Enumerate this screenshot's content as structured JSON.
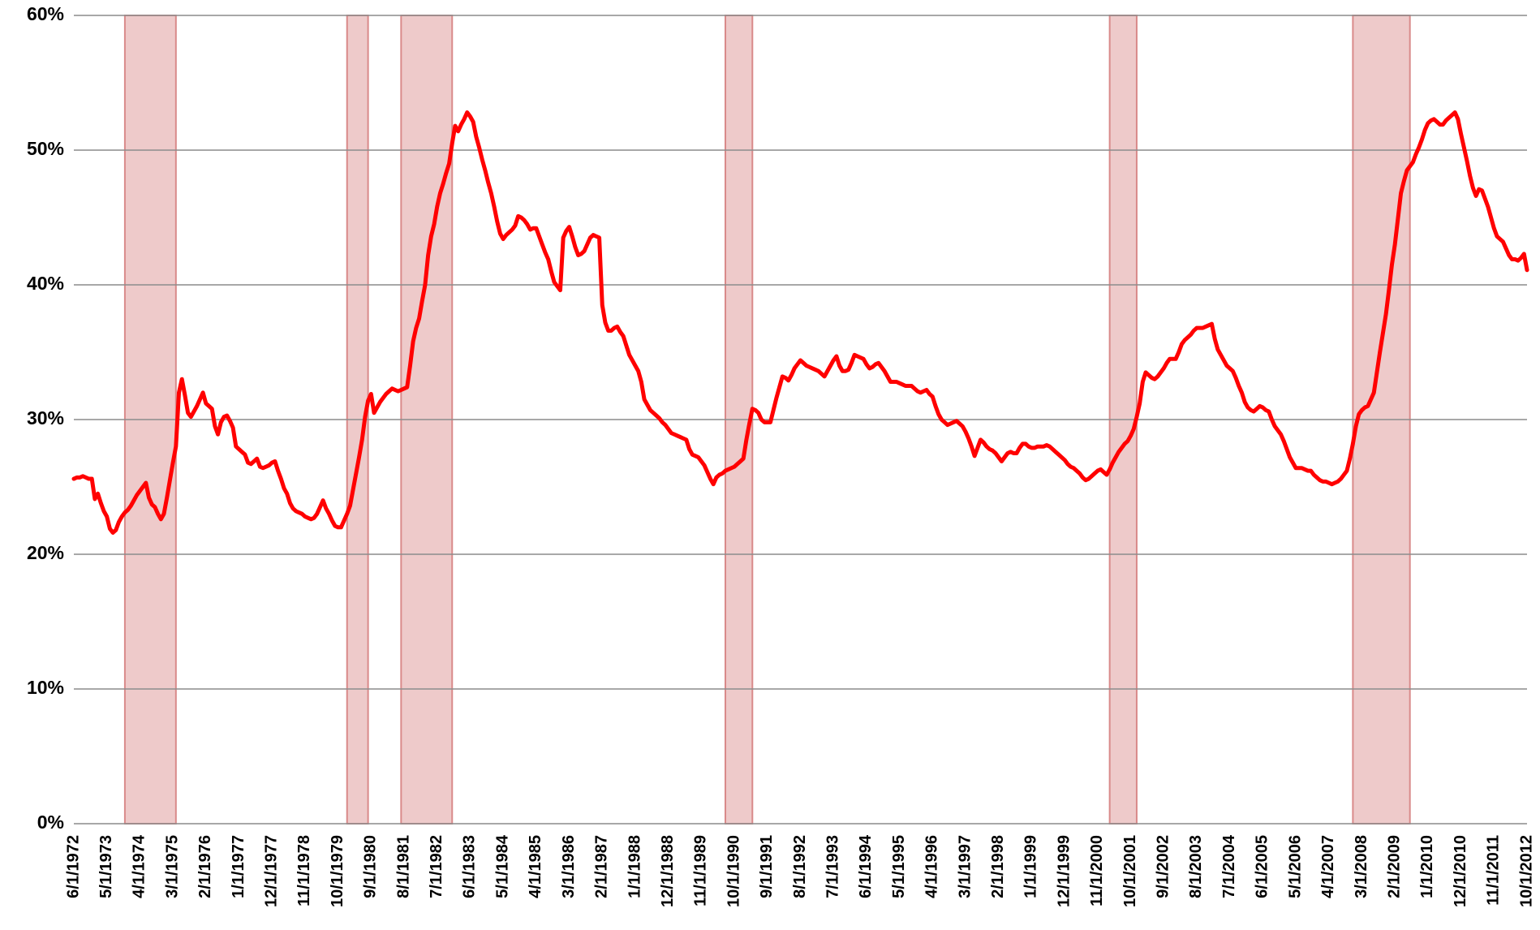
{
  "chart_data": {
    "type": "line",
    "categories": [
      "6/1/1972",
      null,
      null,
      null,
      null,
      null,
      null,
      null,
      null,
      null,
      null,
      "5/1/1973",
      null,
      null,
      null,
      null,
      null,
      null,
      null,
      null,
      null,
      null,
      "4/1/1974",
      null,
      null,
      null,
      null,
      null,
      null,
      null,
      null,
      null,
      null,
      "3/1/1975",
      null,
      null,
      null,
      null,
      null,
      null,
      null,
      null,
      null,
      null,
      "2/1/1976",
      null,
      null,
      null,
      null,
      null,
      null,
      null,
      null,
      null,
      null,
      "1/1/1977",
      null,
      null,
      null,
      null,
      null,
      null,
      null,
      null,
      null,
      null,
      "12/1/1977",
      null,
      null,
      null,
      null,
      null,
      null,
      null,
      null,
      null,
      null,
      "11/1/1978",
      null,
      null,
      null,
      null,
      null,
      null,
      null,
      null,
      null,
      null,
      "10/1/1979",
      null,
      null,
      null,
      null,
      null,
      null,
      null,
      null,
      null,
      null,
      "9/1/1980",
      null,
      null,
      null,
      null,
      null,
      null,
      null,
      null,
      null,
      null,
      "8/1/1981",
      null,
      null,
      null,
      null,
      null,
      null,
      null,
      null,
      null,
      null,
      "7/1/1982",
      null,
      null,
      null,
      null,
      null,
      null,
      null,
      null,
      null,
      null,
      "6/1/1983",
      null,
      null,
      null,
      null,
      null,
      null,
      null,
      null,
      null,
      null,
      "5/1/1984",
      null,
      null,
      null,
      null,
      null,
      null,
      null,
      null,
      null,
      null,
      "4/1/1985",
      null,
      null,
      null,
      null,
      null,
      null,
      null,
      null,
      null,
      null,
      "3/1/1986",
      null,
      null,
      null,
      null,
      null,
      null,
      null,
      null,
      null,
      null,
      "2/1/1987",
      null,
      null,
      null,
      null,
      null,
      null,
      null,
      null,
      null,
      null,
      "1/1/1988",
      null,
      null,
      null,
      null,
      null,
      null,
      null,
      null,
      null,
      null,
      "12/1/1988",
      null,
      null,
      null,
      null,
      null,
      null,
      null,
      null,
      null,
      null,
      "11/1/1989",
      null,
      null,
      null,
      null,
      null,
      null,
      null,
      null,
      null,
      null,
      "10/1/1990",
      null,
      null,
      null,
      null,
      null,
      null,
      null,
      null,
      null,
      null,
      "9/1/1991",
      null,
      null,
      null,
      null,
      null,
      null,
      null,
      null,
      null,
      null,
      "8/1/1992",
      null,
      null,
      null,
      null,
      null,
      null,
      null,
      null,
      null,
      null,
      "7/1/1993",
      null,
      null,
      null,
      null,
      null,
      null,
      null,
      null,
      null,
      null,
      "6/1/1994",
      null,
      null,
      null,
      null,
      null,
      null,
      null,
      null,
      null,
      null,
      "5/1/1995",
      null,
      null,
      null,
      null,
      null,
      null,
      null,
      null,
      null,
      null,
      "4/1/1996",
      null,
      null,
      null,
      null,
      null,
      null,
      null,
      null,
      null,
      null,
      "3/1/1997",
      null,
      null,
      null,
      null,
      null,
      null,
      null,
      null,
      null,
      null,
      "2/1/1998",
      null,
      null,
      null,
      null,
      null,
      null,
      null,
      null,
      null,
      null,
      "1/1/1999",
      null,
      null,
      null,
      null,
      null,
      null,
      null,
      null,
      null,
      null,
      "12/1/1999",
      null,
      null,
      null,
      null,
      null,
      null,
      null,
      null,
      null,
      null,
      "11/1/2000",
      null,
      null,
      null,
      null,
      null,
      null,
      null,
      null,
      null,
      null,
      "10/1/2001",
      null,
      null,
      null,
      null,
      null,
      null,
      null,
      null,
      null,
      null,
      "9/1/2002",
      null,
      null,
      null,
      null,
      null,
      null,
      null,
      null,
      null,
      null,
      "8/1/2003",
      null,
      null,
      null,
      null,
      null,
      null,
      null,
      null,
      null,
      null,
      "7/1/2004",
      null,
      null,
      null,
      null,
      null,
      null,
      null,
      null,
      null,
      null,
      "6/1/2005",
      null,
      null,
      null,
      null,
      null,
      null,
      null,
      null,
      null,
      null,
      "5/1/2006",
      null,
      null,
      null,
      null,
      null,
      null,
      null,
      null,
      null,
      null,
      "4/1/2007",
      null,
      null,
      null,
      null,
      null,
      null,
      null,
      null,
      null,
      null,
      "3/1/2008",
      null,
      null,
      null,
      null,
      null,
      null,
      null,
      null,
      null,
      null,
      "2/1/2009",
      null,
      null,
      null,
      null,
      null,
      null,
      null,
      null,
      null,
      null,
      "1/1/2010",
      null,
      null,
      null,
      null,
      null,
      null,
      null,
      null,
      null,
      null,
      "12/1/2010",
      null,
      null,
      null,
      null,
      null,
      null,
      null,
      null,
      null,
      null,
      "11/1/2011",
      null,
      null,
      null,
      null,
      null,
      null,
      null,
      null,
      null,
      null,
      "10/1/2012"
    ],
    "values": [
      25.6,
      25.7,
      25.7,
      25.8,
      25.7,
      25.6,
      25.6,
      24.1,
      24.5,
      23.8,
      23.2,
      22.8,
      21.9,
      21.6,
      21.8,
      22.4,
      22.8,
      23.1,
      23.3,
      23.6,
      24.0,
      24.4,
      24.7,
      25.0,
      25.3,
      24.2,
      23.7,
      23.5,
      23.0,
      22.6,
      23.0,
      24.2,
      25.5,
      26.8,
      28.0,
      32.0,
      33.0,
      31.8,
      30.5,
      30.2,
      30.6,
      31.0,
      31.5,
      32.0,
      31.2,
      31.0,
      30.8,
      29.5,
      28.9,
      29.8,
      30.2,
      30.3,
      29.9,
      29.4,
      28.0,
      27.8,
      27.6,
      27.4,
      26.8,
      26.7,
      26.9,
      27.1,
      26.5,
      26.4,
      26.5,
      26.6,
      26.8,
      26.9,
      26.2,
      25.6,
      24.9,
      24.5,
      23.8,
      23.4,
      23.2,
      23.1,
      23.0,
      22.8,
      22.7,
      22.6,
      22.7,
      23.0,
      23.5,
      24.0,
      23.4,
      23.0,
      22.5,
      22.1,
      22.0,
      22.0,
      22.5,
      23.0,
      23.6,
      24.8,
      26.0,
      27.2,
      28.5,
      30.2,
      31.4,
      31.9,
      30.5,
      30.9,
      31.3,
      31.6,
      31.9,
      32.1,
      32.3,
      32.2,
      32.1,
      32.2,
      32.3,
      32.4,
      34.0,
      35.8,
      36.8,
      37.5,
      38.8,
      40.0,
      42.2,
      43.6,
      44.5,
      45.8,
      46.8,
      47.5,
      48.3,
      49.0,
      50.5,
      51.8,
      51.4,
      51.9,
      52.3,
      52.8,
      52.5,
      52.1,
      51.0,
      50.2,
      49.3,
      48.5,
      47.6,
      46.8,
      45.8,
      44.7,
      43.8,
      43.4,
      43.7,
      43.9,
      44.1,
      44.4,
      45.1,
      45.0,
      44.8,
      44.5,
      44.1,
      44.2,
      44.2,
      43.6,
      43.0,
      42.4,
      41.9,
      41.0,
      40.2,
      39.9,
      39.6,
      43.5,
      44.0,
      44.3,
      43.6,
      42.8,
      42.2,
      42.3,
      42.5,
      43.0,
      43.5,
      43.7,
      43.6,
      43.5,
      38.5,
      37.2,
      36.6,
      36.6,
      36.8,
      36.9,
      36.5,
      36.2,
      35.5,
      34.8,
      34.4,
      34.0,
      33.6,
      32.8,
      31.5,
      31.1,
      30.7,
      30.5,
      30.3,
      30.1,
      29.8,
      29.6,
      29.3,
      29.0,
      28.9,
      28.8,
      28.7,
      28.6,
      28.5,
      27.8,
      27.4,
      27.3,
      27.2,
      26.9,
      26.6,
      26.1,
      25.6,
      25.2,
      25.7,
      25.9,
      26.0,
      26.2,
      26.3,
      26.4,
      26.5,
      26.7,
      26.9,
      27.1,
      28.5,
      29.7,
      30.8,
      30.7,
      30.5,
      30.0,
      29.8,
      29.8,
      29.8,
      30.7,
      31.6,
      32.4,
      33.2,
      33.1,
      32.9,
      33.3,
      33.8,
      34.1,
      34.4,
      34.2,
      34.0,
      33.9,
      33.8,
      33.7,
      33.6,
      33.4,
      33.2,
      33.6,
      34.0,
      34.4,
      34.7,
      34.0,
      33.6,
      33.6,
      33.7,
      34.2,
      34.8,
      34.7,
      34.6,
      34.5,
      34.1,
      33.8,
      33.9,
      34.1,
      34.2,
      33.9,
      33.6,
      33.2,
      32.8,
      32.8,
      32.8,
      32.7,
      32.6,
      32.5,
      32.5,
      32.5,
      32.3,
      32.1,
      32.0,
      32.1,
      32.2,
      31.9,
      31.7,
      31.0,
      30.4,
      30.0,
      29.8,
      29.6,
      29.7,
      29.8,
      29.9,
      29.7,
      29.5,
      29.1,
      28.6,
      28.0,
      27.3,
      27.9,
      28.5,
      28.3,
      28.0,
      27.8,
      27.7,
      27.5,
      27.2,
      26.9,
      27.2,
      27.5,
      27.6,
      27.5,
      27.5,
      27.9,
      28.2,
      28.2,
      28.0,
      27.9,
      27.9,
      28.0,
      28.0,
      28.0,
      28.1,
      28.0,
      27.8,
      27.6,
      27.4,
      27.2,
      27.0,
      26.7,
      26.5,
      26.4,
      26.2,
      26.0,
      25.7,
      25.5,
      25.6,
      25.8,
      26.0,
      26.2,
      26.3,
      26.1,
      25.9,
      26.3,
      26.8,
      27.2,
      27.6,
      27.9,
      28.2,
      28.4,
      28.8,
      29.3,
      30.2,
      31.2,
      32.8,
      33.5,
      33.3,
      33.1,
      33.0,
      33.2,
      33.5,
      33.8,
      34.2,
      34.5,
      34.5,
      34.5,
      35.0,
      35.6,
      35.9,
      36.1,
      36.3,
      36.6,
      36.8,
      36.8,
      36.8,
      36.9,
      37.0,
      37.1,
      36.0,
      35.2,
      34.8,
      34.4,
      34.0,
      33.8,
      33.6,
      33.1,
      32.5,
      32.0,
      31.3,
      30.9,
      30.7,
      30.6,
      30.8,
      31.0,
      30.9,
      30.7,
      30.6,
      30.0,
      29.5,
      29.2,
      28.9,
      28.4,
      27.8,
      27.2,
      26.8,
      26.4,
      26.4,
      26.4,
      26.3,
      26.2,
      26.2,
      25.9,
      25.7,
      25.5,
      25.4,
      25.4,
      25.3,
      25.2,
      25.3,
      25.4,
      25.6,
      25.9,
      26.2,
      27.1,
      28.2,
      29.5,
      30.4,
      30.7,
      30.9,
      31.0,
      31.5,
      32.0,
      33.5,
      35.0,
      36.4,
      37.8,
      39.6,
      41.5,
      43.0,
      44.9,
      46.8,
      47.7,
      48.5,
      48.8,
      49.1,
      49.7,
      50.2,
      50.8,
      51.5,
      52.0,
      52.2,
      52.3,
      52.1,
      51.9,
      51.9,
      52.2,
      52.4,
      52.6,
      52.8,
      52.3,
      51.2,
      50.2,
      49.2,
      48.1,
      47.2,
      46.6,
      47.1,
      47.0,
      46.4,
      45.8,
      45.0,
      44.2,
      43.6,
      43.4,
      43.2,
      42.7,
      42.2,
      41.9,
      41.9,
      41.8,
      42.0,
      42.3,
      41.1
    ],
    "color": "#ff0000",
    "recessions": [
      {
        "start": "11/1/1973",
        "end": "3/1/1975"
      },
      {
        "start": "1/1/1980",
        "end": "7/1/1980"
      },
      {
        "start": "7/1/1981",
        "end": "11/1/1982"
      },
      {
        "start": "7/1/1990",
        "end": "3/1/1991"
      },
      {
        "start": "3/1/2001",
        "end": "11/1/2001"
      },
      {
        "start": "12/1/2007",
        "end": "6/1/2009"
      }
    ],
    "recession_color": "#d98a8a",
    "ylim": [
      0,
      60
    ],
    "yticks": [
      {
        "value": 0,
        "label": "0%"
      },
      {
        "value": 10,
        "label": "10%"
      },
      {
        "value": 20,
        "label": "20%"
      },
      {
        "value": 30,
        "label": "30%"
      },
      {
        "value": 40,
        "label": "40%"
      },
      {
        "value": 50,
        "label": "50%"
      },
      {
        "value": 60,
        "label": "60%"
      }
    ],
    "grid": true
  }
}
